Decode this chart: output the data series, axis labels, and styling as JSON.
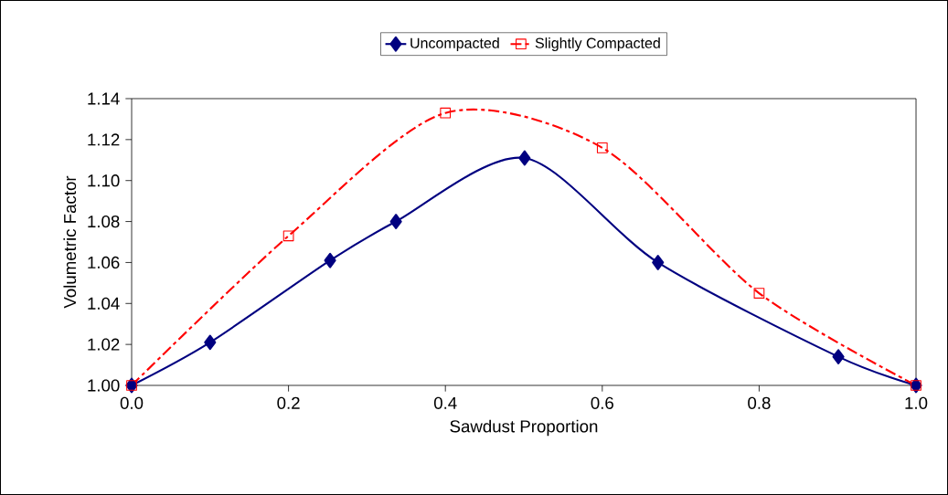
{
  "chart_data": {
    "type": "line",
    "xlabel": "Sawdust Proportion",
    "ylabel": "Volumetric Factor",
    "series": [
      {
        "name": "Uncompacted",
        "color": "#000080",
        "marker": "diamond",
        "line_style": "solid",
        "x": [
          0,
          0.1,
          0.253,
          0.337,
          0.501,
          0.671,
          0.901,
          1.0
        ],
        "values": [
          1.0,
          1.021,
          1.061,
          1.08,
          1.111,
          1.06,
          1.014,
          1.0
        ]
      },
      {
        "name": "Slightly Compacted",
        "color": "#ff0000",
        "marker": "square",
        "line_style": "dashed",
        "x": [
          0,
          0.2,
          0.4,
          0.6,
          0.8,
          1.0
        ],
        "values": [
          1.0,
          1.073,
          1.133,
          1.116,
          1.045,
          1.0
        ]
      }
    ],
    "xlim": [
      0,
      1
    ],
    "ylim": [
      1.0,
      1.14
    ],
    "xticks": [
      {
        "value": 0,
        "label": "0.0"
      },
      {
        "value": 0.2,
        "label": "0.2"
      },
      {
        "value": 0.4,
        "label": "0.4"
      },
      {
        "value": 0.6,
        "label": "0.6"
      },
      {
        "value": 0.8,
        "label": "0.8"
      },
      {
        "value": 1,
        "label": "1.0"
      }
    ],
    "yticks": [
      {
        "value": 1.0,
        "label": "1.00"
      },
      {
        "value": 1.02,
        "label": "1.02"
      },
      {
        "value": 1.04,
        "label": "1.04"
      },
      {
        "value": 1.06,
        "label": "1.06"
      },
      {
        "value": 1.08,
        "label": "1.08"
      },
      {
        "value": 1.1,
        "label": "1.10"
      },
      {
        "value": 1.12,
        "label": "1.12"
      },
      {
        "value": 1.14,
        "label": "1.14"
      }
    ],
    "grid": false,
    "legend": "top"
  }
}
